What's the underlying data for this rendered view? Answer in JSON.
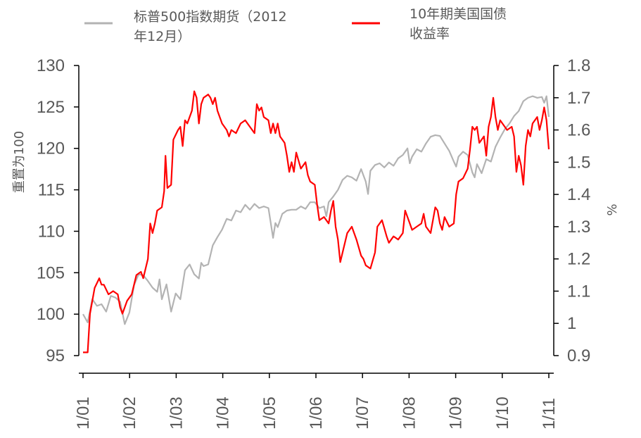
{
  "chart_data": {
    "type": "line",
    "title": "",
    "x_tick_labels": [
      "1/01",
      "1/02",
      "1/03",
      "1/04",
      "1/05",
      "1/06",
      "1/07",
      "1/08",
      "1/09",
      "1/10",
      "1/11"
    ],
    "y_left": {
      "label": "重置为100",
      "ticks": [
        "95",
        "100",
        "105",
        "110",
        "115",
        "120",
        "125",
        "130"
      ],
      "range": [
        95,
        130
      ]
    },
    "y_right": {
      "label": "%",
      "ticks": [
        "0.9",
        "1",
        "1.1",
        "1.2",
        "1.3",
        "1.4",
        "1.5",
        "1.6",
        "1.7",
        "1.8"
      ],
      "range": [
        0.9,
        1.8
      ]
    },
    "x_range": [
      0,
      10.05
    ],
    "series": [
      {
        "name": "标普500指数期货（2012年12月）",
        "legend_lines": [
          "标普500指数期货（2012",
          "年12月）"
        ],
        "axis": "left",
        "color": "#b3b3b3",
        "points": [
          [
            0.0,
            100.0
          ],
          [
            0.1,
            99.0
          ],
          [
            0.2,
            101.8
          ],
          [
            0.3,
            101.0
          ],
          [
            0.4,
            101.2
          ],
          [
            0.5,
            100.3
          ],
          [
            0.6,
            102.2
          ],
          [
            0.7,
            102.0
          ],
          [
            0.8,
            101.5
          ],
          [
            0.9,
            98.8
          ],
          [
            1.0,
            100.2
          ],
          [
            1.1,
            103.5
          ],
          [
            1.2,
            104.8
          ],
          [
            1.3,
            104.7
          ],
          [
            1.4,
            104.0
          ],
          [
            1.5,
            103.2
          ],
          [
            1.6,
            102.7
          ],
          [
            1.65,
            104.2
          ],
          [
            1.7,
            101.8
          ],
          [
            1.8,
            103.6
          ],
          [
            1.9,
            100.3
          ],
          [
            2.0,
            102.5
          ],
          [
            2.1,
            101.8
          ],
          [
            2.2,
            105.3
          ],
          [
            2.3,
            106.0
          ],
          [
            2.4,
            104.8
          ],
          [
            2.5,
            104.3
          ],
          [
            2.55,
            106.2
          ],
          [
            2.6,
            105.8
          ],
          [
            2.7,
            106.0
          ],
          [
            2.8,
            108.3
          ],
          [
            2.9,
            109.3
          ],
          [
            3.0,
            110.2
          ],
          [
            3.1,
            111.5
          ],
          [
            3.2,
            111.3
          ],
          [
            3.3,
            112.5
          ],
          [
            3.4,
            112.3
          ],
          [
            3.5,
            113.2
          ],
          [
            3.6,
            112.6
          ],
          [
            3.7,
            113.3
          ],
          [
            3.8,
            112.8
          ],
          [
            3.9,
            113.0
          ],
          [
            4.0,
            112.8
          ],
          [
            4.1,
            109.2
          ],
          [
            4.15,
            111.0
          ],
          [
            4.2,
            110.5
          ],
          [
            4.3,
            112.1
          ],
          [
            4.4,
            112.5
          ],
          [
            4.5,
            112.6
          ],
          [
            4.6,
            112.6
          ],
          [
            4.7,
            113.0
          ],
          [
            4.8,
            112.7
          ],
          [
            4.9,
            113.5
          ],
          [
            5.0,
            113.5
          ],
          [
            5.1,
            112.8
          ],
          [
            5.2,
            113.0
          ],
          [
            5.25,
            111.8
          ],
          [
            5.3,
            113.5
          ],
          [
            5.4,
            114.2
          ],
          [
            5.5,
            115.0
          ],
          [
            5.6,
            116.2
          ],
          [
            5.7,
            116.7
          ],
          [
            5.8,
            116.5
          ],
          [
            5.9,
            116.1
          ],
          [
            6.0,
            117.5
          ],
          [
            6.1,
            116.0
          ],
          [
            6.15,
            114.5
          ],
          [
            6.2,
            117.3
          ],
          [
            6.3,
            118.0
          ],
          [
            6.4,
            118.2
          ],
          [
            6.5,
            117.7
          ],
          [
            6.6,
            118.3
          ],
          [
            6.7,
            117.9
          ],
          [
            6.8,
            118.8
          ],
          [
            6.9,
            119.2
          ],
          [
            7.0,
            120.0
          ],
          [
            7.05,
            118.2
          ],
          [
            7.1,
            119.0
          ],
          [
            7.2,
            119.9
          ],
          [
            7.3,
            119.6
          ],
          [
            7.4,
            120.6
          ],
          [
            7.5,
            121.4
          ],
          [
            7.6,
            121.6
          ],
          [
            7.7,
            121.5
          ],
          [
            7.8,
            120.6
          ],
          [
            7.9,
            119.7
          ],
          [
            8.0,
            118.4
          ],
          [
            8.05,
            117.8
          ],
          [
            8.1,
            119.0
          ],
          [
            8.2,
            119.6
          ],
          [
            8.3,
            119.2
          ],
          [
            8.4,
            117.1
          ],
          [
            8.45,
            116.5
          ],
          [
            8.5,
            118.1
          ],
          [
            8.6,
            117.0
          ],
          [
            8.7,
            118.7
          ],
          [
            8.8,
            118.4
          ],
          [
            8.9,
            120.2
          ],
          [
            9.0,
            121.3
          ],
          [
            9.1,
            122.3
          ],
          [
            9.2,
            123.0
          ],
          [
            9.3,
            123.9
          ],
          [
            9.4,
            124.5
          ],
          [
            9.5,
            125.7
          ],
          [
            9.6,
            126.1
          ],
          [
            9.7,
            126.3
          ],
          [
            9.8,
            126.1
          ],
          [
            9.9,
            126.2
          ],
          [
            9.95,
            125.5
          ],
          [
            10.0,
            126.3
          ],
          [
            10.05,
            123.8
          ]
        ]
      },
      {
        "name": "10年期美国国债收益率",
        "legend_lines": [
          "10年期美国国债",
          "收益率"
        ],
        "axis": "right",
        "color": "#ff0000",
        "points": [
          [
            0.0,
            0.91
          ],
          [
            0.1,
            0.91
          ],
          [
            0.15,
            1.03
          ],
          [
            0.25,
            1.11
          ],
          [
            0.35,
            1.14
          ],
          [
            0.4,
            1.12
          ],
          [
            0.45,
            1.12
          ],
          [
            0.55,
            1.09
          ],
          [
            0.65,
            1.1
          ],
          [
            0.75,
            1.09
          ],
          [
            0.8,
            1.05
          ],
          [
            0.85,
            1.03
          ],
          [
            0.95,
            1.07
          ],
          [
            1.05,
            1.09
          ],
          [
            1.15,
            1.15
          ],
          [
            1.25,
            1.16
          ],
          [
            1.3,
            1.14
          ],
          [
            1.4,
            1.2
          ],
          [
            1.45,
            1.31
          ],
          [
            1.5,
            1.28
          ],
          [
            1.55,
            1.31
          ],
          [
            1.6,
            1.35
          ],
          [
            1.7,
            1.36
          ],
          [
            1.75,
            1.41
          ],
          [
            1.78,
            1.52
          ],
          [
            1.82,
            1.42
          ],
          [
            1.9,
            1.43
          ],
          [
            1.95,
            1.57
          ],
          [
            2.05,
            1.6
          ],
          [
            2.1,
            1.61
          ],
          [
            2.15,
            1.55
          ],
          [
            2.2,
            1.63
          ],
          [
            2.25,
            1.62
          ],
          [
            2.3,
            1.64
          ],
          [
            2.35,
            1.66
          ],
          [
            2.4,
            1.72
          ],
          [
            2.45,
            1.7
          ],
          [
            2.5,
            1.62
          ],
          [
            2.55,
            1.68
          ],
          [
            2.6,
            1.7
          ],
          [
            2.7,
            1.71
          ],
          [
            2.75,
            1.7
          ],
          [
            2.8,
            1.68
          ],
          [
            2.85,
            1.7
          ],
          [
            2.9,
            1.66
          ],
          [
            2.95,
            1.64
          ],
          [
            3.0,
            1.62
          ],
          [
            3.1,
            1.6
          ],
          [
            3.15,
            1.58
          ],
          [
            3.2,
            1.6
          ],
          [
            3.3,
            1.59
          ],
          [
            3.4,
            1.62
          ],
          [
            3.5,
            1.63
          ],
          [
            3.6,
            1.61
          ],
          [
            3.7,
            1.59
          ],
          [
            3.75,
            1.68
          ],
          [
            3.8,
            1.66
          ],
          [
            3.85,
            1.67
          ],
          [
            3.9,
            1.64
          ],
          [
            4.0,
            1.63
          ],
          [
            4.05,
            1.59
          ],
          [
            4.1,
            1.62
          ],
          [
            4.15,
            1.59
          ],
          [
            4.2,
            1.62
          ],
          [
            4.25,
            1.58
          ],
          [
            4.35,
            1.56
          ],
          [
            4.4,
            1.52
          ],
          [
            4.45,
            1.47
          ],
          [
            4.5,
            1.5
          ],
          [
            4.55,
            1.47
          ],
          [
            4.6,
            1.53
          ],
          [
            4.7,
            1.48
          ],
          [
            4.8,
            1.5
          ],
          [
            4.85,
            1.46
          ],
          [
            4.9,
            1.44
          ],
          [
            5.0,
            1.43
          ],
          [
            5.05,
            1.37
          ],
          [
            5.1,
            1.32
          ],
          [
            5.2,
            1.33
          ],
          [
            5.3,
            1.31
          ],
          [
            5.35,
            1.35
          ],
          [
            5.4,
            1.38
          ],
          [
            5.45,
            1.3
          ],
          [
            5.5,
            1.26
          ],
          [
            5.55,
            1.19
          ],
          [
            5.6,
            1.22
          ],
          [
            5.7,
            1.28
          ],
          [
            5.8,
            1.3
          ],
          [
            5.9,
            1.26
          ],
          [
            6.0,
            1.21
          ],
          [
            6.05,
            1.2
          ],
          [
            6.1,
            1.18
          ],
          [
            6.2,
            1.17
          ],
          [
            6.3,
            1.22
          ],
          [
            6.35,
            1.3
          ],
          [
            6.45,
            1.32
          ],
          [
            6.55,
            1.27
          ],
          [
            6.6,
            1.25
          ],
          [
            6.7,
            1.27
          ],
          [
            6.8,
            1.26
          ],
          [
            6.9,
            1.28
          ],
          [
            6.95,
            1.35
          ],
          [
            7.05,
            1.31
          ],
          [
            7.1,
            1.29
          ],
          [
            7.2,
            1.3
          ],
          [
            7.3,
            1.31
          ],
          [
            7.35,
            1.34
          ],
          [
            7.4,
            1.3
          ],
          [
            7.5,
            1.28
          ],
          [
            7.55,
            1.32
          ],
          [
            7.6,
            1.36
          ],
          [
            7.65,
            1.35
          ],
          [
            7.7,
            1.31
          ],
          [
            7.75,
            1.29
          ],
          [
            7.8,
            1.33
          ],
          [
            7.9,
            1.3
          ],
          [
            8.0,
            1.31
          ],
          [
            8.05,
            1.4
          ],
          [
            8.1,
            1.44
          ],
          [
            8.2,
            1.45
          ],
          [
            8.3,
            1.48
          ],
          [
            8.35,
            1.54
          ],
          [
            8.4,
            1.61
          ],
          [
            8.45,
            1.6
          ],
          [
            8.5,
            1.61
          ],
          [
            8.55,
            1.56
          ],
          [
            8.65,
            1.58
          ],
          [
            8.7,
            1.52
          ],
          [
            8.75,
            1.61
          ],
          [
            8.8,
            1.64
          ],
          [
            8.85,
            1.7
          ],
          [
            8.9,
            1.64
          ],
          [
            8.95,
            1.6
          ],
          [
            9.0,
            1.63
          ],
          [
            9.05,
            1.62
          ],
          [
            9.15,
            1.6
          ],
          [
            9.25,
            1.61
          ],
          [
            9.3,
            1.58
          ],
          [
            9.35,
            1.47
          ],
          [
            9.4,
            1.52
          ],
          [
            9.45,
            1.49
          ],
          [
            9.5,
            1.43
          ],
          [
            9.55,
            1.55
          ],
          [
            9.6,
            1.6
          ],
          [
            9.65,
            1.58
          ],
          [
            9.7,
            1.62
          ],
          [
            9.8,
            1.64
          ],
          [
            9.85,
            1.6
          ],
          [
            9.9,
            1.63
          ],
          [
            9.95,
            1.67
          ],
          [
            10.0,
            1.63
          ],
          [
            10.05,
            1.54
          ]
        ]
      }
    ]
  }
}
